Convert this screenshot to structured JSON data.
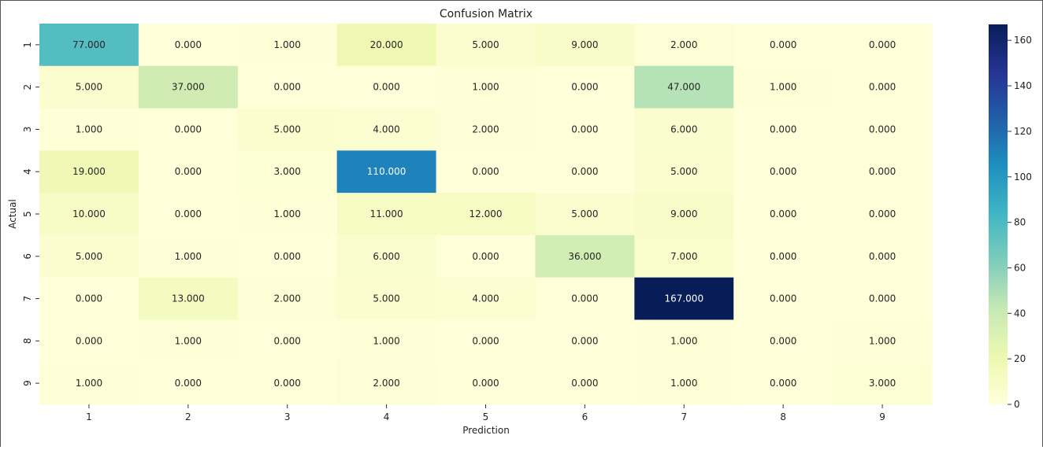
{
  "chart_data": {
    "type": "heatmap",
    "title": "Confusion Matrix",
    "xlabel": "Prediction",
    "ylabel": "Actual",
    "x_categories": [
      "1",
      "2",
      "3",
      "4",
      "5",
      "6",
      "7",
      "8",
      "9"
    ],
    "y_categories": [
      "1",
      "2",
      "3",
      "4",
      "5",
      "6",
      "7",
      "8",
      "9"
    ],
    "values": [
      [
        77,
        0,
        1,
        20,
        5,
        9,
        2,
        0,
        0
      ],
      [
        5,
        37,
        0,
        0,
        1,
        0,
        47,
        1,
        0
      ],
      [
        1,
        0,
        5,
        4,
        2,
        0,
        6,
        0,
        0
      ],
      [
        19,
        0,
        3,
        110,
        0,
        0,
        5,
        0,
        0
      ],
      [
        10,
        0,
        1,
        11,
        12,
        5,
        9,
        0,
        0
      ],
      [
        5,
        1,
        0,
        6,
        0,
        36,
        7,
        0,
        0
      ],
      [
        0,
        13,
        2,
        5,
        4,
        0,
        167,
        0,
        0
      ],
      [
        0,
        1,
        0,
        1,
        0,
        0,
        1,
        0,
        1
      ],
      [
        1,
        0,
        0,
        2,
        0,
        0,
        1,
        0,
        3
      ]
    ],
    "value_format": "0.000",
    "colormap": "YlGnBu",
    "colorbar": {
      "range": [
        0,
        167
      ],
      "ticks": [
        0,
        20,
        40,
        60,
        80,
        100,
        120,
        140,
        160
      ]
    },
    "colors": {
      "low": "#ffffd9",
      "mid": "#41b6c4",
      "high": "#081d58"
    }
  }
}
